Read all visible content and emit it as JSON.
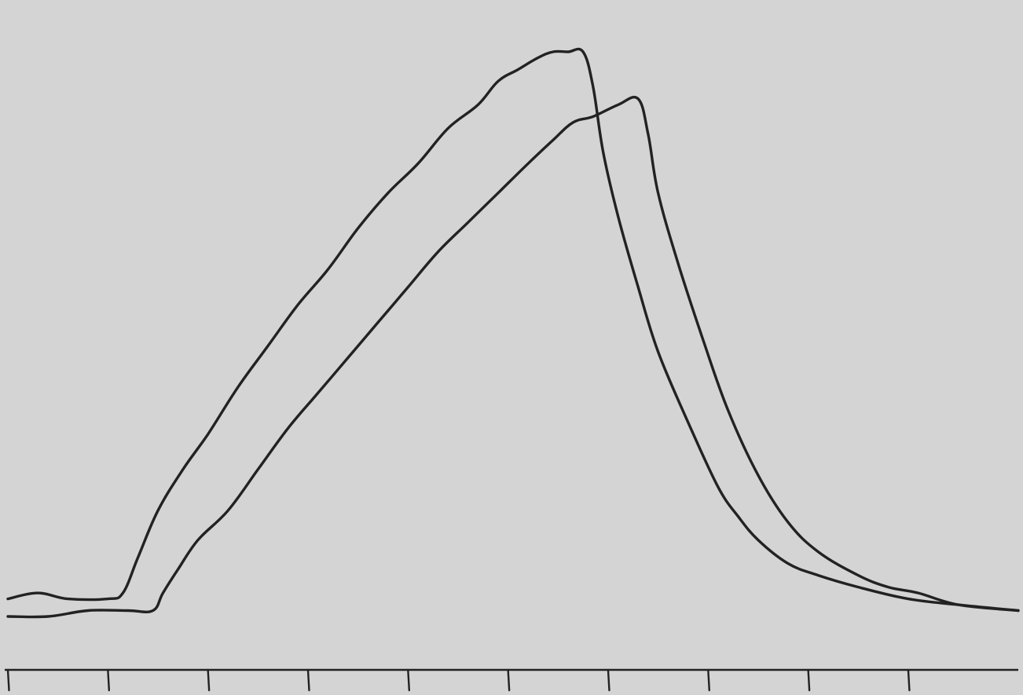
{
  "chart_data": {
    "type": "line",
    "title": "",
    "xlabel": "",
    "ylabel": "",
    "xlim": [
      0,
      10.1
    ],
    "ylim": [
      0,
      1
    ],
    "grid": false,
    "legend": "none",
    "time_marks": [
      0,
      1,
      2,
      3,
      4,
      5,
      6,
      7,
      8,
      9
    ],
    "series": [
      {
        "x": [
          0,
          0.3,
          0.6,
          1.0,
          1.15,
          1.3,
          1.5,
          1.75,
          2.0,
          2.3,
          2.6,
          2.9,
          3.2,
          3.5,
          3.8,
          4.1,
          4.4,
          4.7,
          4.9,
          5.1,
          5.3,
          5.45,
          5.6,
          5.75,
          5.85,
          5.95,
          6.1,
          6.3,
          6.5,
          6.8,
          7.1,
          7.3,
          7.5,
          7.8,
          8.1,
          8.5,
          9.0,
          9.5,
          10.1
        ],
        "values": [
          0.07,
          0.08,
          0.07,
          0.07,
          0.08,
          0.14,
          0.22,
          0.29,
          0.35,
          0.43,
          0.5,
          0.57,
          0.63,
          0.7,
          0.76,
          0.81,
          0.87,
          0.91,
          0.95,
          0.97,
          0.99,
          1.0,
          1.0,
          1.0,
          0.94,
          0.83,
          0.72,
          0.6,
          0.49,
          0.37,
          0.26,
          0.21,
          0.17,
          0.13,
          0.11,
          0.09,
          0.07,
          0.06,
          0.05
        ],
        "color": "#222222"
      },
      {
        "x": [
          0,
          0.4,
          0.8,
          1.2,
          1.45,
          1.55,
          1.7,
          1.9,
          2.2,
          2.5,
          2.8,
          3.1,
          3.4,
          3.7,
          4.0,
          4.3,
          4.6,
          4.9,
          5.2,
          5.45,
          5.65,
          5.85,
          6.1,
          6.3,
          6.4,
          6.5,
          6.7,
          6.95,
          7.2,
          7.5,
          7.8,
          8.1,
          8.5,
          8.8,
          9.1,
          9.5,
          10.1
        ],
        "values": [
          0.04,
          0.04,
          0.05,
          0.05,
          0.05,
          0.08,
          0.12,
          0.17,
          0.22,
          0.29,
          0.36,
          0.42,
          0.48,
          0.54,
          0.6,
          0.66,
          0.71,
          0.76,
          0.81,
          0.85,
          0.88,
          0.89,
          0.91,
          0.92,
          0.86,
          0.76,
          0.64,
          0.51,
          0.39,
          0.28,
          0.2,
          0.15,
          0.11,
          0.09,
          0.08,
          0.06,
          0.05
        ],
        "color": "#222222"
      }
    ]
  },
  "colors": {
    "paper": "#d4d4d4",
    "ink": "#222222"
  }
}
